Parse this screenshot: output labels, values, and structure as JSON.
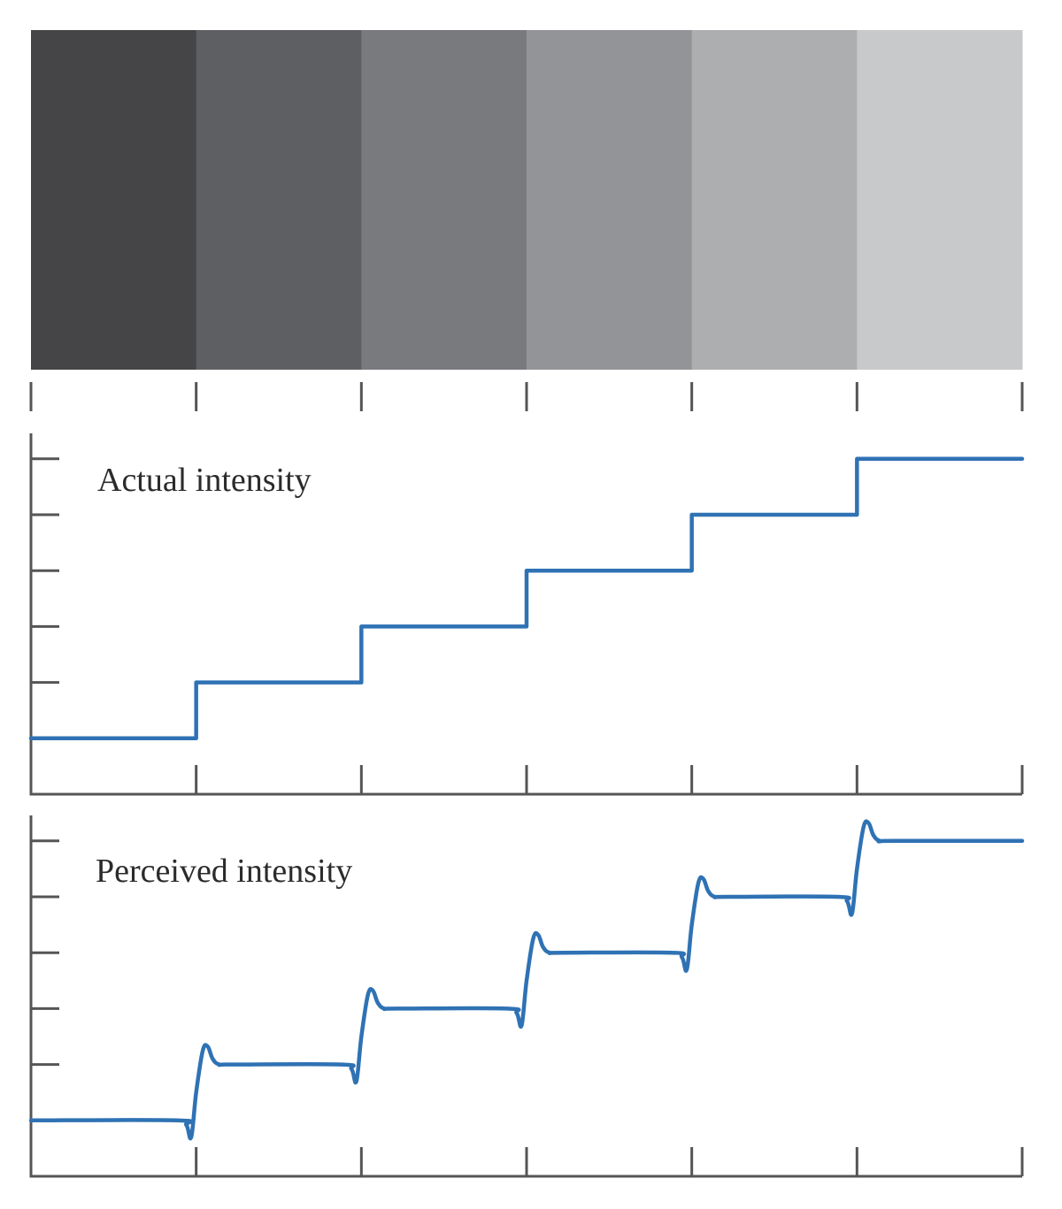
{
  "chart_data": [
    {
      "type": "image",
      "description_role": "grayscale-step-bands",
      "bands": [
        {
          "color": "#454547"
        },
        {
          "color": "#5e5f62"
        },
        {
          "color": "#797a7e"
        },
        {
          "color": "#939497"
        },
        {
          "color": "#adaeb0"
        },
        {
          "color": "#c8c9cb"
        }
      ]
    },
    {
      "type": "line",
      "title": "Actual intensity",
      "xlabel": "",
      "ylabel": "",
      "xlim": [
        0,
        6
      ],
      "ylim": [
        0,
        6.5
      ],
      "x_ticks": [
        0,
        1,
        2,
        3,
        4,
        5,
        6
      ],
      "y_ticks": [
        1,
        2,
        3,
        4,
        5,
        6
      ],
      "show_tick_labels": false,
      "grid": false,
      "line_color": "#2f72b4",
      "series": [
        {
          "x": [
            0,
            1,
            1,
            2,
            2,
            3,
            3,
            4,
            4,
            5,
            5,
            6
          ],
          "values": [
            1,
            1,
            2,
            2,
            3,
            3,
            4,
            4,
            5,
            5,
            6,
            6
          ]
        }
      ]
    },
    {
      "type": "line",
      "title": "Perceived intensity",
      "xlabel": "",
      "ylabel": "",
      "xlim": [
        0,
        6
      ],
      "ylim": [
        0,
        6.5
      ],
      "x_ticks": [
        0,
        1,
        2,
        3,
        4,
        5,
        6
      ],
      "y_ticks": [
        1,
        2,
        3,
        4,
        5,
        6
      ],
      "show_tick_labels": false,
      "grid": false,
      "line_color": "#2f72b4",
      "series": [
        {
          "x": [
            0,
            0.88,
            0.94,
            0.97,
            1.0,
            1.04,
            1.07,
            1.1,
            1.14,
            1.22,
            1.88,
            1.94,
            1.97,
            2.0,
            2.04,
            2.07,
            2.1,
            2.14,
            2.22,
            2.88,
            2.94,
            2.97,
            3.0,
            3.04,
            3.07,
            3.1,
            3.14,
            3.22,
            3.88,
            3.94,
            3.97,
            4.0,
            4.04,
            4.07,
            4.1,
            4.14,
            4.22,
            4.88,
            4.94,
            4.97,
            5.0,
            5.04,
            5.07,
            5.1,
            5.14,
            5.22,
            6.0
          ],
          "values": [
            1,
            1,
            0.92,
            0.7,
            1.5,
            2.25,
            2.32,
            2.1,
            2.0,
            2.0,
            2.0,
            1.92,
            1.7,
            2.5,
            3.25,
            3.32,
            3.1,
            3.0,
            3.0,
            3.0,
            2.92,
            2.7,
            3.5,
            4.25,
            4.32,
            4.1,
            4.0,
            4.0,
            4.0,
            3.92,
            3.7,
            4.5,
            5.25,
            5.32,
            5.1,
            5.0,
            5.0,
            5.0,
            4.92,
            4.7,
            5.5,
            6.25,
            6.32,
            6.1,
            6.0,
            6.0,
            6.0
          ]
        }
      ]
    }
  ]
}
